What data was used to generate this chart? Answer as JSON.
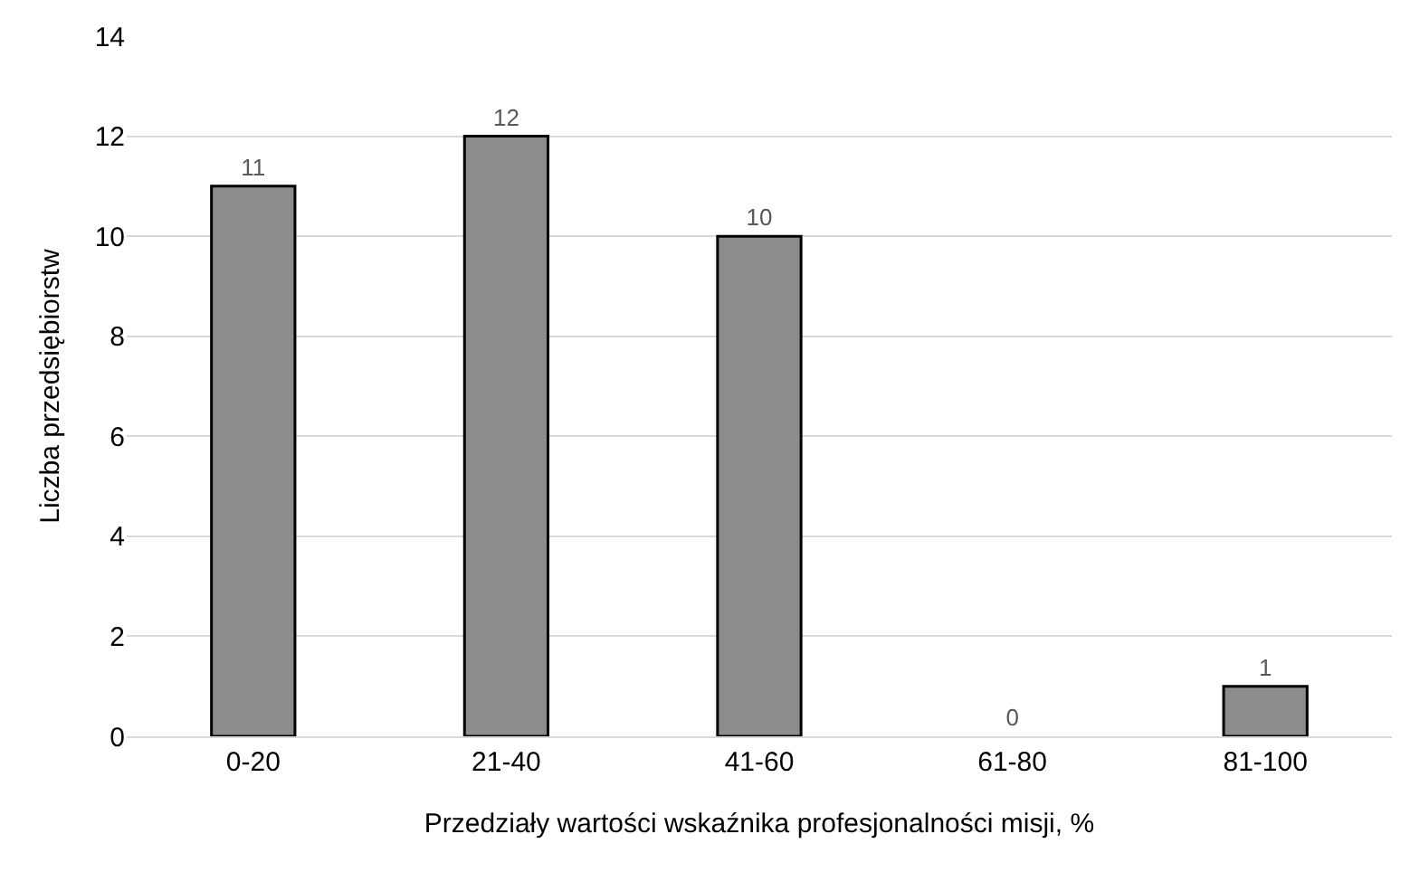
{
  "chart_data": {
    "type": "bar",
    "xlabel": "Przedziały wartości wskaźnika profesjonalności misji, %",
    "ylabel": "Liczba przedsiębiorstw",
    "categories": [
      "0-20",
      "21-40",
      "41-60",
      "61-80",
      "81-100"
    ],
    "values": [
      11,
      12,
      10,
      0,
      1
    ],
    "color": "#8c8c8c",
    "ylim": [
      0,
      14
    ],
    "yticks": [
      0,
      2,
      4,
      6,
      8,
      10,
      12,
      14
    ],
    "grid": "y",
    "data_labels": true
  }
}
